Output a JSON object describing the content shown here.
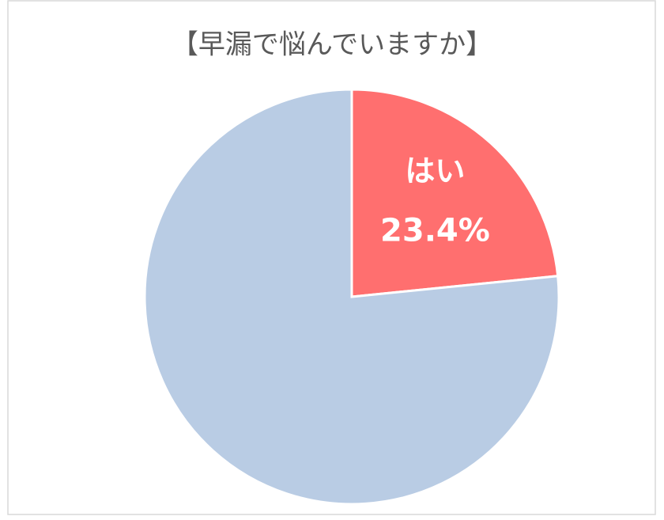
{
  "chart_data": {
    "type": "pie",
    "title": "【早漏で悩んでいますか】",
    "categories": [
      "はい",
      null
    ],
    "values": [
      23.4,
      76.6
    ],
    "value_labels": [
      "23.4%",
      null
    ],
    "colors": [
      "#ff6f6f",
      "#b9cce4"
    ]
  }
}
